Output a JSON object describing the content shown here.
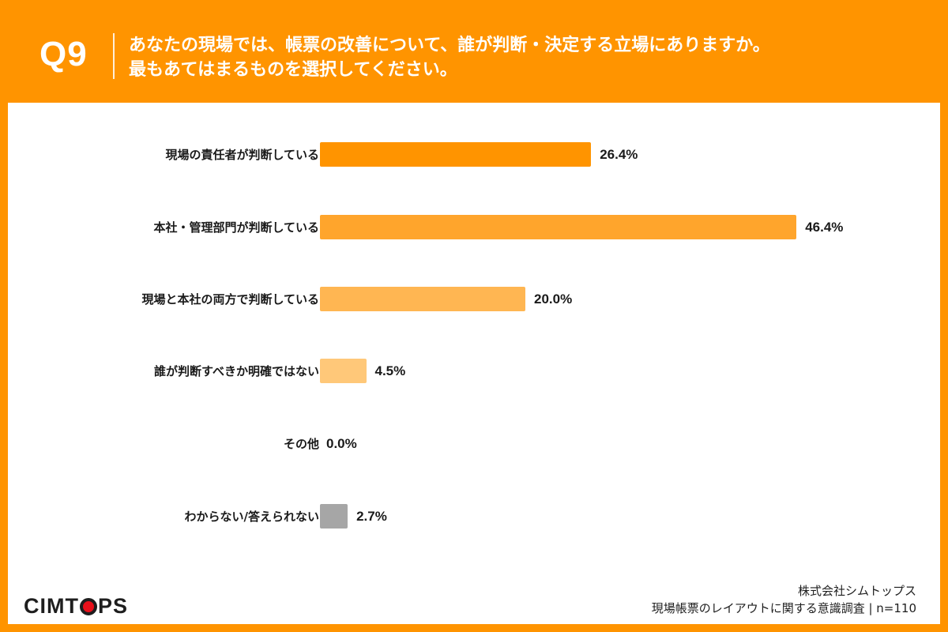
{
  "header": {
    "question_number": "Q9",
    "question_line1": "あなたの現場では、帳票の改善について、誰が判断・決定する立場にありますか。",
    "question_line2": "最もあてはまるものを選択してください。"
  },
  "chart_data": {
    "type": "bar",
    "orientation": "horizontal",
    "title": "あなたの現場では、帳票の改善について、誰が判断・決定する立場にありますか。最もあてはまるものを選択してください。",
    "categories": [
      "現場の責任者が判断している",
      "本社・管理部門が判断している",
      "現場と本社の両方で判断している",
      "誰が判断すべきか明確ではない",
      "その他",
      "わからない/答えられない"
    ],
    "values": [
      26.4,
      46.4,
      20.0,
      4.5,
      0.0,
      2.7
    ],
    "value_labels": [
      "26.4%",
      "46.4%",
      "20.0%",
      "4.5%",
      "0.0%",
      "2.7%"
    ],
    "colors": [
      "#ff9400",
      "#ffa52c",
      "#ffb652",
      "#ffc879",
      "#ffd9a0",
      "#a6a6a6"
    ],
    "unit": "%",
    "xlabel": "",
    "ylabel": "",
    "grid": false,
    "legend": null,
    "n": 110
  },
  "footer": {
    "logo_prefix": "CIMT",
    "logo_suffix": "PS",
    "company": "株式会社シムトップス",
    "survey": "現場帳票のレイアウトに関する意識調査 | n=110"
  }
}
